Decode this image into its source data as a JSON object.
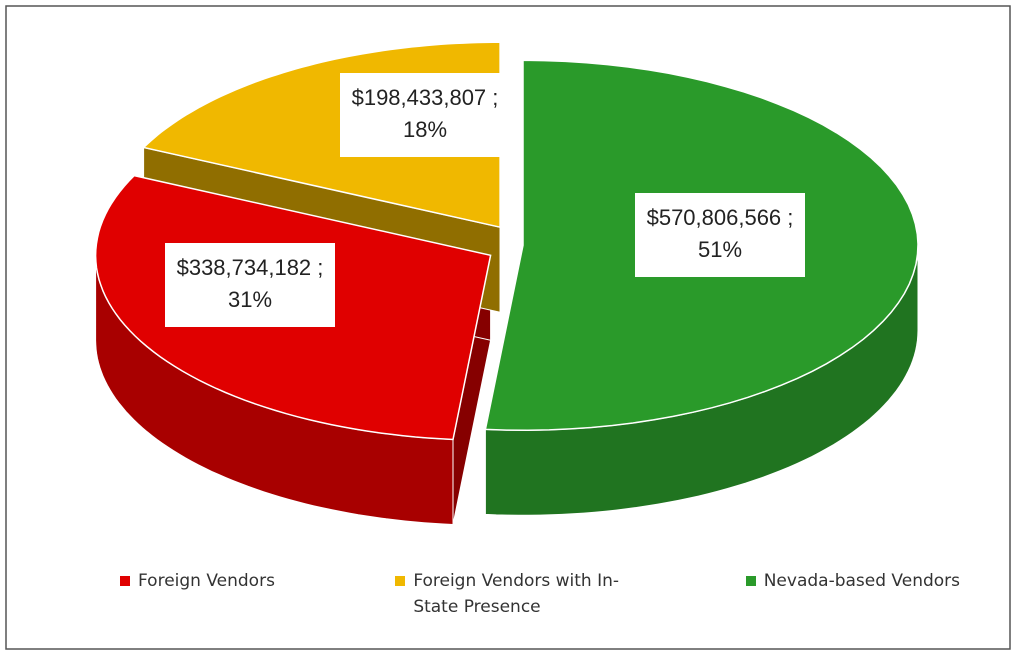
{
  "chart_data": {
    "type": "pie3d",
    "categories": [
      "Foreign Vendors",
      "Foreign Vendors with In-State Presence",
      "Nevada-based Vendors"
    ],
    "values": [
      338734182,
      198433807,
      570806566
    ],
    "value_labels": [
      "$338,734,182 ;",
      "$198,433,807 ;",
      "$570,806,566 ;"
    ],
    "percent_values": [
      31,
      18,
      51
    ],
    "percent_labels": [
      "31%",
      "18%",
      "51%"
    ],
    "colors": [
      "#e00000",
      "#f0b800",
      "#2a9a2a"
    ],
    "legend": "bottom"
  }
}
